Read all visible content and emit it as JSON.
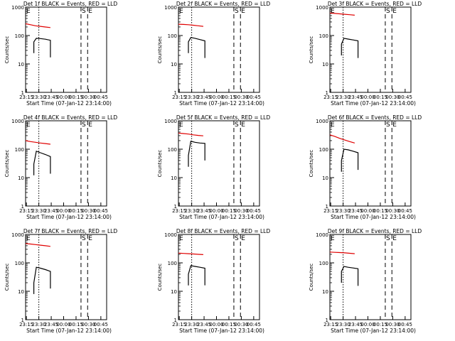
{
  "figure": {
    "xlabel": "Start Time (07-Jan-12 23:14:00)",
    "ylabel": "Counts/sec",
    "colors": {
      "events": "#000000",
      "lld": "#e00000",
      "axes": "#000000"
    }
  },
  "chart_data": [
    {
      "type": "line",
      "title": "Det 1f BLACK = Events, RED = LLD",
      "xlabel": "Start Time (07-Jan-12 23:14:00)",
      "ylabel": "Counts/sec",
      "x_ticks": [
        "23:15",
        "23:30",
        "23:45",
        "00:00",
        "00:15",
        "00:30",
        "00:45"
      ],
      "y_scale": "log",
      "y_ticks": [
        "1",
        "10",
        "100",
        "1000"
      ],
      "xlim": [
        "23:14",
        "00:52"
      ],
      "ylim": [
        1,
        1000
      ],
      "markers": [
        {
          "label": "E",
          "time": "23:14",
          "style": "solid"
        },
        {
          "label": "",
          "time": "23:30",
          "style": "dotted"
        },
        {
          "label": "S",
          "time": "00:21",
          "style": "dashed"
        },
        {
          "label": "E",
          "time": "00:29",
          "style": "dashed"
        }
      ],
      "series": [
        {
          "name": "LLD",
          "color": "red",
          "x": [
            "23:14",
            "23:20",
            "23:26",
            "23:32",
            "23:38",
            "23:44"
          ],
          "values": [
            260,
            240,
            220,
            210,
            200,
            190
          ]
        },
        {
          "name": "Events",
          "color": "black",
          "x": [
            "23:24",
            "23:27",
            "23:32",
            "23:38",
            "23:44"
          ],
          "values": [
            60,
            80,
            78,
            74,
            68
          ]
        }
      ]
    },
    {
      "type": "line",
      "title": "Det 2f BLACK = Events, RED = LLD",
      "xlabel": "Start Time (07-Jan-12 23:14:00)",
      "ylabel": "Counts/sec",
      "x_ticks": [
        "23:15",
        "23:30",
        "23:45",
        "00:00",
        "00:15",
        "00:30",
        "00:45"
      ],
      "y_scale": "log",
      "y_ticks": [
        "1",
        "10",
        "100",
        "1000"
      ],
      "xlim": [
        "23:14",
        "00:52"
      ],
      "ylim": [
        1,
        1000
      ],
      "markers": [
        {
          "label": "E",
          "time": "23:14",
          "style": "solid"
        },
        {
          "label": "",
          "time": "23:30",
          "style": "dotted"
        },
        {
          "label": "S",
          "time": "00:21",
          "style": "dashed"
        },
        {
          "label": "E",
          "time": "00:29",
          "style": "dashed"
        }
      ],
      "series": [
        {
          "name": "LLD",
          "color": "red",
          "x": [
            "23:14",
            "23:20",
            "23:26",
            "23:32",
            "23:38",
            "23:44"
          ],
          "values": [
            250,
            245,
            240,
            230,
            220,
            210
          ]
        },
        {
          "name": "Events",
          "color": "black",
          "x": [
            "23:26",
            "23:29",
            "23:34",
            "23:40",
            "23:46"
          ],
          "values": [
            60,
            85,
            80,
            72,
            65
          ]
        }
      ]
    },
    {
      "type": "line",
      "title": "Det 3f BLACK = Events, RED = LLD",
      "xlabel": "Start Time (07-Jan-12 23:14:00)",
      "ylabel": "Counts/sec",
      "x_ticks": [
        "23:15",
        "23:30",
        "23:45",
        "00:00",
        "00:15",
        "00:30",
        "00:45"
      ],
      "y_scale": "log",
      "y_ticks": [
        "1",
        "10",
        "100",
        "1000"
      ],
      "xlim": [
        "23:14",
        "00:52"
      ],
      "ylim": [
        1,
        1000
      ],
      "markers": [
        {
          "label": "E",
          "time": "23:14",
          "style": "solid"
        },
        {
          "label": "",
          "time": "23:30",
          "style": "dotted"
        },
        {
          "label": "S",
          "time": "00:21",
          "style": "dashed"
        },
        {
          "label": "E",
          "time": "00:29",
          "style": "dashed"
        }
      ],
      "series": [
        {
          "name": "LLD",
          "color": "red",
          "x": [
            "23:14",
            "23:20",
            "23:26",
            "23:32",
            "23:38",
            "23:44"
          ],
          "values": [
            620,
            600,
            580,
            560,
            540,
            520
          ]
        },
        {
          "name": "Events",
          "color": "black",
          "x": [
            "23:28",
            "23:31",
            "23:36",
            "23:42",
            "23:48"
          ],
          "values": [
            50,
            80,
            75,
            70,
            65
          ]
        }
      ]
    },
    {
      "type": "line",
      "title": "Det 4f BLACK = Events, RED = LLD",
      "xlabel": "Start Time (07-Jan-12 23:14:00)",
      "ylabel": "Counts/sec",
      "x_ticks": [
        "23:15",
        "23:30",
        "23:45",
        "00:00",
        "00:15",
        "00:30",
        "00:45"
      ],
      "y_scale": "log",
      "y_ticks": [
        "1",
        "10",
        "100",
        "1000"
      ],
      "xlim": [
        "23:14",
        "00:52"
      ],
      "ylim": [
        1,
        1000
      ],
      "markers": [
        {
          "label": "E",
          "time": "23:14",
          "style": "solid"
        },
        {
          "label": "",
          "time": "23:30",
          "style": "dotted"
        },
        {
          "label": "S",
          "time": "00:21",
          "style": "dashed"
        },
        {
          "label": "E",
          "time": "00:29",
          "style": "dashed"
        }
      ],
      "series": [
        {
          "name": "LLD",
          "color": "red",
          "x": [
            "23:14",
            "23:20",
            "23:26",
            "23:32",
            "23:38",
            "23:44"
          ],
          "values": [
            200,
            185,
            175,
            165,
            158,
            150
          ]
        },
        {
          "name": "Events",
          "color": "black",
          "x": [
            "23:24",
            "23:27",
            "23:32",
            "23:38",
            "23:44"
          ],
          "values": [
            30,
            85,
            75,
            65,
            55
          ]
        }
      ]
    },
    {
      "type": "line",
      "title": "Det 5f BLACK = Events, RED = LLD",
      "xlabel": "Start Time (07-Jan-12 23:14:00)",
      "ylabel": "Counts/sec",
      "x_ticks": [
        "23:15",
        "23:30",
        "23:45",
        "00:00",
        "00:15",
        "00:30",
        "00:45"
      ],
      "y_scale": "log",
      "y_ticks": [
        "1",
        "10",
        "100",
        "1000"
      ],
      "xlim": [
        "23:14",
        "00:52"
      ],
      "ylim": [
        1,
        1000
      ],
      "markers": [
        {
          "label": "E",
          "time": "23:14",
          "style": "solid"
        },
        {
          "label": "",
          "time": "23:30",
          "style": "dotted"
        },
        {
          "label": "S",
          "time": "00:21",
          "style": "dashed"
        },
        {
          "label": "E",
          "time": "00:29",
          "style": "dashed"
        }
      ],
      "series": [
        {
          "name": "LLD",
          "color": "red",
          "x": [
            "23:14",
            "23:20",
            "23:26",
            "23:32",
            "23:38",
            "23:44"
          ],
          "values": [
            370,
            355,
            340,
            320,
            305,
            295
          ]
        },
        {
          "name": "Events",
          "color": "black",
          "x": [
            "23:26",
            "23:29",
            "23:34",
            "23:40",
            "23:46"
          ],
          "values": [
            60,
            190,
            175,
            165,
            160
          ]
        }
      ]
    },
    {
      "type": "line",
      "title": "Det 6f BLACK = Events, RED = LLD",
      "xlabel": "Start Time (07-Jan-12 23:14:00)",
      "ylabel": "Counts/sec",
      "x_ticks": [
        "23:15",
        "23:30",
        "23:45",
        "00:00",
        "00:15",
        "00:30",
        "00:45"
      ],
      "y_scale": "log",
      "y_ticks": [
        "1",
        "10",
        "100",
        "1000"
      ],
      "xlim": [
        "23:14",
        "00:52"
      ],
      "ylim": [
        1,
        1000
      ],
      "markers": [
        {
          "label": "E",
          "time": "23:14",
          "style": "solid"
        },
        {
          "label": "",
          "time": "23:30",
          "style": "dotted"
        },
        {
          "label": "S",
          "time": "00:21",
          "style": "dashed"
        },
        {
          "label": "E",
          "time": "00:29",
          "style": "dashed"
        }
      ],
      "series": [
        {
          "name": "LLD",
          "color": "red",
          "x": [
            "23:14",
            "23:20",
            "23:26",
            "23:32",
            "23:38",
            "23:44"
          ],
          "values": [
            320,
            280,
            240,
            210,
            185,
            165
          ]
        },
        {
          "name": "Events",
          "color": "black",
          "x": [
            "23:28",
            "23:31",
            "23:36",
            "23:42",
            "23:48"
          ],
          "values": [
            40,
            100,
            95,
            85,
            75
          ]
        }
      ]
    },
    {
      "type": "line",
      "title": "Det 7f BLACK = Events, RED = LLD",
      "xlabel": "Start Time (07-Jan-12 23:14:00)",
      "ylabel": "Counts/sec",
      "x_ticks": [
        "23:15",
        "23:30",
        "23:45",
        "00:00",
        "00:15",
        "00:30",
        "00:45"
      ],
      "y_scale": "log",
      "y_ticks": [
        "1",
        "10",
        "100",
        "1000"
      ],
      "xlim": [
        "23:14",
        "00:52"
      ],
      "ylim": [
        1,
        1000
      ],
      "markers": [
        {
          "label": "E",
          "time": "23:14",
          "style": "solid"
        },
        {
          "label": "",
          "time": "23:30",
          "style": "dotted"
        },
        {
          "label": "S",
          "time": "00:21",
          "style": "dashed"
        },
        {
          "label": "E",
          "time": "00:29",
          "style": "dashed"
        }
      ],
      "series": [
        {
          "name": "LLD",
          "color": "red",
          "x": [
            "23:14",
            "23:20",
            "23:26",
            "23:32",
            "23:38",
            "23:44"
          ],
          "values": [
            480,
            460,
            440,
            420,
            400,
            380
          ]
        },
        {
          "name": "Events",
          "color": "black",
          "x": [
            "23:24",
            "23:27",
            "23:32",
            "23:38",
            "23:44"
          ],
          "values": [
            20,
            70,
            65,
            58,
            50
          ]
        }
      ]
    },
    {
      "type": "line",
      "title": "Det 8f BLACK = Events, RED = LLD",
      "xlabel": "Start Time (07-Jan-12 23:14:00)",
      "ylabel": "Counts/sec",
      "x_ticks": [
        "23:15",
        "23:30",
        "23:45",
        "00:00",
        "00:15",
        "00:30",
        "00:45"
      ],
      "y_scale": "log",
      "y_ticks": [
        "1",
        "10",
        "100",
        "1000"
      ],
      "xlim": [
        "23:14",
        "00:52"
      ],
      "ylim": [
        1,
        1000
      ],
      "markers": [
        {
          "label": "E",
          "time": "23:14",
          "style": "solid"
        },
        {
          "label": "",
          "time": "23:30",
          "style": "dotted"
        },
        {
          "label": "S",
          "time": "00:21",
          "style": "dashed"
        },
        {
          "label": "E",
          "time": "00:29",
          "style": "dashed"
        }
      ],
      "series": [
        {
          "name": "LLD",
          "color": "red",
          "x": [
            "23:14",
            "23:20",
            "23:26",
            "23:32",
            "23:38",
            "23:44"
          ],
          "values": [
            220,
            215,
            210,
            205,
            200,
            195
          ]
        },
        {
          "name": "Events",
          "color": "black",
          "x": [
            "23:26",
            "23:29",
            "23:34",
            "23:40",
            "23:46"
          ],
          "values": [
            40,
            80,
            75,
            70,
            65
          ]
        }
      ]
    },
    {
      "type": "line",
      "title": "Det 9f BLACK = Events, RED = LLD",
      "xlabel": "Start Time (07-Jan-12 23:14:00)",
      "ylabel": "Counts/sec",
      "x_ticks": [
        "23:15",
        "23:30",
        "23:45",
        "00:00",
        "00:15",
        "00:30",
        "00:45"
      ],
      "y_scale": "log",
      "y_ticks": [
        "1",
        "10",
        "100",
        "1000"
      ],
      "xlim": [
        "23:14",
        "00:52"
      ],
      "ylim": [
        1,
        1000
      ],
      "markers": [
        {
          "label": "E",
          "time": "23:14",
          "style": "solid"
        },
        {
          "label": "",
          "time": "23:30",
          "style": "dotted"
        },
        {
          "label": "S",
          "time": "00:21",
          "style": "dashed"
        },
        {
          "label": "E",
          "time": "00:29",
          "style": "dashed"
        }
      ],
      "series": [
        {
          "name": "LLD",
          "color": "red",
          "x": [
            "23:14",
            "23:20",
            "23:26",
            "23:32",
            "23:38",
            "23:44"
          ],
          "values": [
            240,
            235,
            230,
            225,
            218,
            210
          ]
        },
        {
          "name": "Events",
          "color": "black",
          "x": [
            "23:28",
            "23:31",
            "23:36",
            "23:42",
            "23:48"
          ],
          "values": [
            50,
            75,
            70,
            66,
            62
          ]
        }
      ]
    }
  ]
}
